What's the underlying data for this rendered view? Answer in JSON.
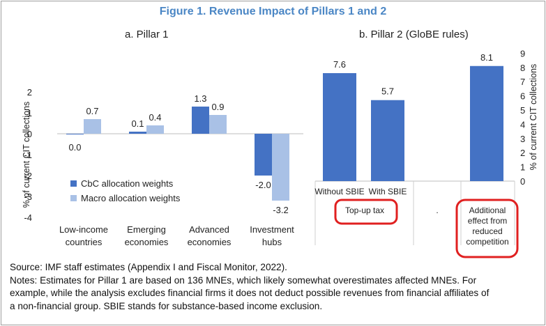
{
  "figure_title": "Figure 1. Revenue Impact of Pillars 1 and 2",
  "source": "Source: IMF staff estimates (Appendix I and Fiscal Monitor, 2022).",
  "notes": [
    "Notes: Estimates for Pillar 1 are based on 136 MNEs, which likely somewhat overestimates affected MNEs. For",
    "example, while the analysis excludes financial firms it does not deduct possible revenues from financial affiliates of",
    "a non-financial group. SBIE stands for substance-based income exclusion."
  ],
  "colors": {
    "title": "#4a86c5",
    "dark_bar": "#4472c4",
    "light_bar": "#a9c1e6",
    "highlight": "#e02020"
  },
  "chart_data": [
    {
      "type": "bar",
      "title": "a. Pillar 1",
      "ylabel": "% of current CIT collections",
      "ylim": [
        -4,
        2
      ],
      "yticks": [
        2,
        1,
        0,
        -1,
        -2,
        -3,
        -4
      ],
      "categories": [
        [
          "Low-income",
          "countries"
        ],
        [
          "Emerging",
          "economies"
        ],
        [
          "Advanced",
          "economies"
        ],
        [
          "Investment",
          "hubs"
        ]
      ],
      "series": [
        {
          "name": "CbC allocation weights",
          "values": [
            0.0,
            0.1,
            1.3,
            -2.0
          ],
          "labels": [
            "0.0",
            "0.1",
            "1.3",
            "-2.0"
          ]
        },
        {
          "name": "Macro allocation weights",
          "values": [
            0.7,
            0.4,
            0.9,
            -3.2
          ],
          "labels": [
            "0.7",
            "0.4",
            "0.9",
            "-3.2"
          ]
        }
      ],
      "legend": "bottom-left",
      "grid": false
    },
    {
      "type": "bar",
      "title": "b. Pillar 2 (GloBE rules)",
      "ylabel": "% of current CIT collections",
      "ylim": [
        0,
        9
      ],
      "yticks": [
        9,
        8,
        7,
        6,
        5,
        4,
        3,
        2,
        1,
        0
      ],
      "categories": [
        "Without SBIE",
        "With SBIE",
        "",
        ""
      ],
      "values": [
        7.6,
        5.7,
        null,
        8.1
      ],
      "labels": [
        "7.6",
        "5.7",
        "",
        "8.1"
      ],
      "groups": [
        {
          "label": "Top-up tax",
          "highlighted": true
        },
        {
          "label": ".",
          "highlighted": false
        },
        {
          "label": [
            "Additional",
            "effect from",
            "reduced",
            "competition"
          ],
          "highlighted": true
        }
      ],
      "grid": false
    }
  ]
}
